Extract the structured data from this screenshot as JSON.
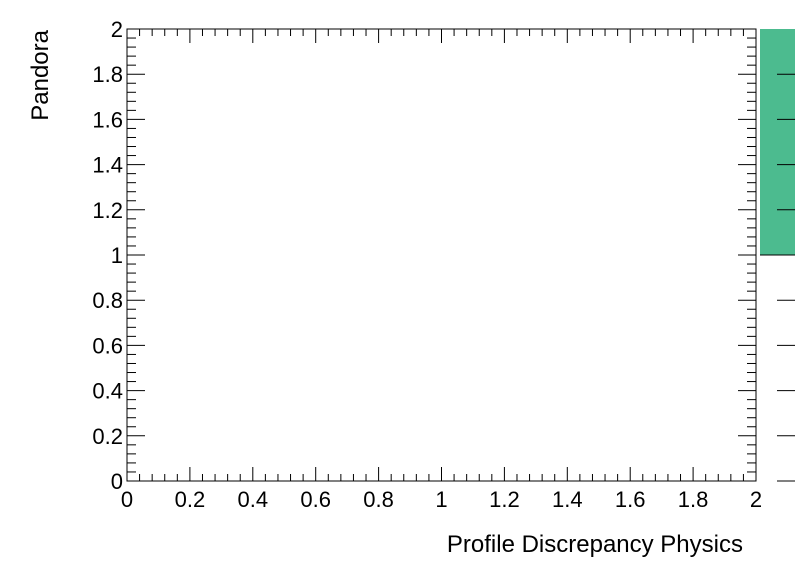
{
  "chart_data": {
    "type": "heatmap",
    "title": "",
    "xlabel": "Profile Discrepancy Physics",
    "ylabel": "Pandora",
    "xlim": [
      0,
      2
    ],
    "ylim": [
      0,
      2
    ],
    "x_ticks": [
      "0",
      "0.2",
      "0.4",
      "0.6",
      "0.8",
      "1",
      "1.2",
      "1.4",
      "1.6",
      "1.8",
      "2"
    ],
    "y_ticks": [
      "0",
      "0.2",
      "0.4",
      "0.6",
      "0.8",
      "1",
      "1.2",
      "1.4",
      "1.6",
      "1.8",
      "2"
    ],
    "x_tick_values": [
      0,
      0.2,
      0.4,
      0.6,
      0.8,
      1,
      1.2,
      1.4,
      1.6,
      1.8,
      2
    ],
    "y_tick_values": [
      0,
      0.2,
      0.4,
      0.6,
      0.8,
      1,
      1.2,
      1.4,
      1.6,
      1.8,
      2
    ],
    "cells": [],
    "colorbar": {
      "range": [
        0,
        2
      ],
      "filled_range": [
        1,
        2
      ],
      "color": "#4cbb8f"
    },
    "grid": false,
    "legend": "none"
  }
}
